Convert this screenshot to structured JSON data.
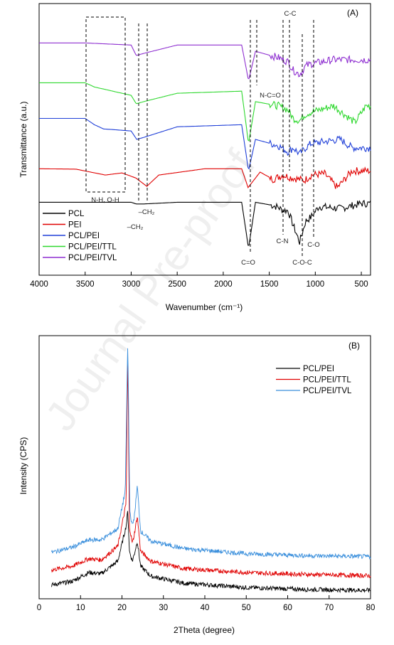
{
  "watermark": "Journal Pre-proof",
  "chart_data": [
    {
      "type": "line",
      "panel_label": "(A)",
      "xlabel": "Wavenumber (cm⁻¹)",
      "ylabel": "Transmittance (a.u.)",
      "xlim": [
        4000,
        400
      ],
      "x_reversed": true,
      "xticks": [
        4000,
        3500,
        3000,
        2500,
        2000,
        1500,
        1000,
        500
      ],
      "legend_position": "bottom-left",
      "series": [
        {
          "name": "PCL",
          "color": "#000000",
          "baseline": 0.2,
          "x": [
            4000,
            3500,
            3000,
            2945,
            2865,
            2500,
            1800,
            1725,
            1650,
            1470,
            1400,
            1365,
            1295,
            1240,
            1170,
            1105,
            1045,
            960,
            730,
            500,
            400
          ],
          "y": [
            0.2,
            0.2,
            0.2,
            0.16,
            0.16,
            0.2,
            0.2,
            -0.9,
            0.2,
            0.13,
            0.08,
            0.02,
            0.0,
            -0.35,
            -0.75,
            -0.25,
            -0.15,
            0.1,
            0.05,
            0.17,
            0.17
          ]
        },
        {
          "name": "PEI",
          "color": "#e00000",
          "baseline": 1.0,
          "x": [
            4000,
            3600,
            3280,
            3100,
            2950,
            2830,
            2700,
            2200,
            1800,
            1730,
            1600,
            1460,
            1350,
            1280,
            1120,
            1040,
            900,
            760,
            600,
            400
          ],
          "y": [
            1.0,
            0.99,
            0.85,
            0.9,
            0.78,
            0.58,
            0.85,
            1.0,
            1.0,
            0.55,
            0.92,
            0.75,
            0.85,
            0.8,
            0.72,
            0.85,
            0.88,
            0.55,
            0.95,
            0.95
          ]
        },
        {
          "name": "PCL/PEI",
          "color": "#1f3fd8",
          "baseline": 2.2,
          "x": [
            4000,
            3500,
            3400,
            3300,
            3000,
            2940,
            2860,
            2500,
            1800,
            1725,
            1650,
            1400,
            1295,
            1240,
            1170,
            1105,
            1045,
            730,
            600,
            400
          ],
          "y": [
            2.2,
            2.2,
            2.05,
            1.95,
            1.9,
            1.7,
            1.75,
            2.0,
            2.05,
            0.95,
            1.7,
            1.55,
            1.4,
            1.5,
            1.35,
            1.5,
            1.6,
            1.7,
            1.5,
            1.5
          ]
        },
        {
          "name": "PCL/PEI/TTL",
          "color": "#2fd82f",
          "baseline": 3.0,
          "x": [
            4000,
            3500,
            3400,
            3000,
            2945,
            2865,
            2500,
            1800,
            1725,
            1650,
            1400,
            1295,
            1240,
            1170,
            1105,
            1045,
            800,
            570,
            450,
            400
          ],
          "y": [
            3.05,
            3.05,
            2.95,
            2.75,
            2.55,
            2.6,
            2.8,
            2.85,
            1.6,
            2.6,
            2.5,
            2.4,
            2.2,
            2.15,
            2.3,
            2.35,
            2.5,
            2.1,
            2.5,
            2.5
          ]
        },
        {
          "name": "PCL/PEI/TVL",
          "color": "#8e2fd0",
          "baseline": 4.0,
          "x": [
            4000,
            3500,
            3000,
            2945,
            2865,
            2500,
            1800,
            1725,
            1650,
            1400,
            1295,
            1240,
            1170,
            1105,
            1045,
            800,
            400
          ],
          "y": [
            4.0,
            4.0,
            3.95,
            3.7,
            3.75,
            3.95,
            3.95,
            3.1,
            3.8,
            3.65,
            3.55,
            3.35,
            3.25,
            3.45,
            3.5,
            3.6,
            3.6
          ]
        }
      ],
      "annotations": [
        {
          "text": "N-H, O-H",
          "x": 3220
        },
        {
          "text": "–CH₂",
          "x": 2860
        },
        {
          "text": "–CH₂",
          "x": 2970
        },
        {
          "text": "C=O",
          "x": 1740
        },
        {
          "text": "N-C=O",
          "x": 1560
        },
        {
          "text": "C-C",
          "x": 1300
        },
        {
          "text": "C-N",
          "x": 1300
        },
        {
          "text": "C-O",
          "x": 1030
        },
        {
          "text": "C-O-C",
          "x": 1150
        }
      ]
    },
    {
      "type": "line",
      "panel_label": "(B)",
      "xlabel": "2Theta (degree)",
      "ylabel": "Intensity (CPS)",
      "xlim": [
        0,
        80
      ],
      "xticks": [
        0,
        10,
        20,
        30,
        40,
        50,
        60,
        70,
        80
      ],
      "legend_position": "top-right",
      "series": [
        {
          "name": "PCL/PEI",
          "color": "#000000",
          "x": [
            3,
            8,
            12,
            15,
            19,
            21.0,
            21.4,
            21.8,
            22.5,
            23.0,
            23.7,
            24.5,
            27,
            35,
            50,
            65,
            80
          ],
          "y": [
            0.25,
            0.4,
            0.75,
            0.7,
            1.2,
            2.6,
            3.2,
            1.6,
            1.2,
            1.5,
            2.0,
            1.0,
            0.6,
            0.32,
            0.15,
            0.07,
            0.04
          ]
        },
        {
          "name": "PCL/PEI/TTL",
          "color": "#e00000",
          "x": [
            3,
            8,
            12,
            15,
            19,
            21.0,
            21.4,
            21.8,
            22.5,
            23.0,
            23.7,
            24.5,
            27,
            35,
            50,
            65,
            80
          ],
          "y": [
            0.85,
            1.0,
            1.3,
            1.25,
            1.8,
            3.5,
            9.5,
            2.6,
            1.9,
            2.3,
            3.0,
            1.6,
            1.2,
            0.9,
            0.75,
            0.67,
            0.62
          ]
        },
        {
          "name": "PCL/PEI/TVL",
          "color": "#3a8fdc",
          "x": [
            3,
            8,
            12,
            15,
            19,
            20.8,
            21.4,
            21.9,
            22.5,
            23.0,
            23.7,
            24.5,
            27,
            35,
            50,
            65,
            80
          ],
          "y": [
            1.55,
            1.75,
            2.05,
            2.05,
            2.5,
            4.0,
            10.0,
            3.2,
            2.6,
            3.0,
            4.2,
            2.4,
            2.0,
            1.7,
            1.5,
            1.42,
            1.38
          ]
        }
      ],
      "ylim": [
        -0.3,
        10.2
      ]
    }
  ]
}
